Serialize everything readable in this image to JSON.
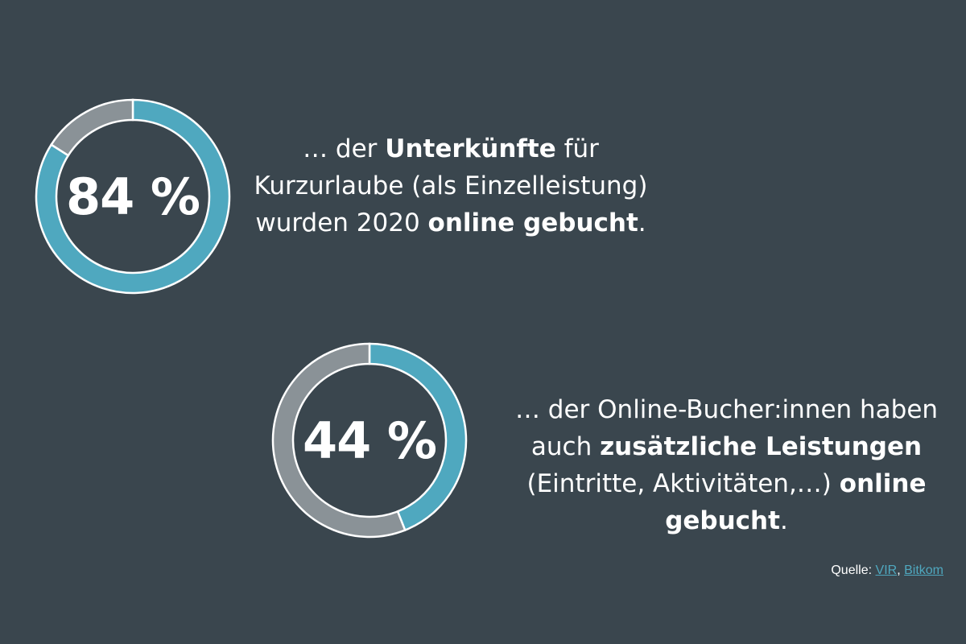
{
  "colors": {
    "background": "#3a464e",
    "accent": "#4fa8bf",
    "remainder": "#8a9297",
    "separator": "#ffffff"
  },
  "chart_data": [
    {
      "type": "pie",
      "value_label": "84 %",
      "values": [
        84,
        16
      ],
      "colors": [
        "#4fa8bf",
        "#8a9297"
      ]
    },
    {
      "type": "pie",
      "value_label": "44 %",
      "values": [
        44,
        56
      ],
      "colors": [
        "#4fa8bf",
        "#8a9297"
      ]
    }
  ],
  "captions": [
    {
      "parts": [
        {
          "text": "… der ",
          "bold": false
        },
        {
          "text": "Unterkünfte",
          "bold": true
        },
        {
          "text": " für Kurzurlaube (als Einzelleistung) wurden 2020 ",
          "bold": false
        },
        {
          "text": "online gebucht",
          "bold": true
        },
        {
          "text": ".",
          "bold": false
        }
      ]
    },
    {
      "parts": [
        {
          "text": "… der Online-Bucher:innen haben auch ",
          "bold": false
        },
        {
          "text": "zusätzliche Leistungen",
          "bold": true
        },
        {
          "text": " (Eintritte, Aktivitäten,…) ",
          "bold": false
        },
        {
          "text": "online gebucht",
          "bold": true
        },
        {
          "text": ".",
          "bold": false
        }
      ]
    }
  ],
  "source": {
    "label": "Quelle:",
    "links": [
      "VIR",
      "Bitkom"
    ],
    "separator": ","
  }
}
